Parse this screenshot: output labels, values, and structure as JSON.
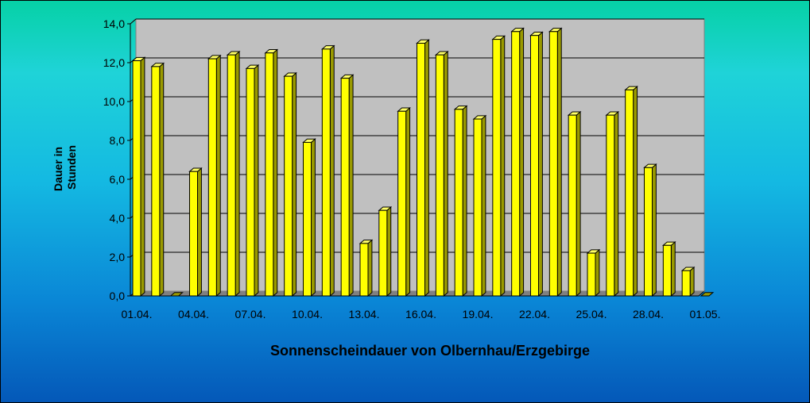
{
  "chart_data": {
    "type": "bar",
    "title": "Sonnenscheindauer von Olbernhau/Erzgebirge",
    "ylabel_lines": [
      "Dauer in",
      "Stunden"
    ],
    "xlabel": "",
    "ylim": [
      0,
      14
    ],
    "yticks": [
      "0,0",
      "2,0",
      "4,0",
      "6,0",
      "8,0",
      "10,0",
      "12,0",
      "14,0"
    ],
    "xtick_labels": [
      "01.04.",
      "04.04.",
      "07.04.",
      "10.04.",
      "13.04.",
      "16.04.",
      "19.04.",
      "22.04.",
      "25.04.",
      "28.04.",
      "01.05."
    ],
    "categories": [
      "01.04.",
      "02.04.",
      "03.04.",
      "04.04.",
      "05.04.",
      "06.04.",
      "07.04.",
      "08.04.",
      "09.04.",
      "10.04.",
      "11.04.",
      "12.04.",
      "13.04.",
      "14.04.",
      "15.04.",
      "16.04.",
      "17.04.",
      "18.04.",
      "19.04.",
      "20.04.",
      "21.04.",
      "22.04.",
      "23.04.",
      "24.04.",
      "25.04.",
      "26.04.",
      "27.04.",
      "28.04.",
      "29.04.",
      "30.04.",
      "01.05."
    ],
    "values": [
      12.1,
      11.8,
      0,
      6.4,
      12.2,
      12.4,
      11.7,
      12.5,
      11.3,
      7.9,
      12.7,
      11.2,
      2.7,
      4.4,
      9.5,
      13.0,
      12.4,
      9.6,
      9.1,
      13.2,
      13.6,
      13.4,
      13.6,
      9.3,
      2.2,
      9.3,
      10.6,
      6.6,
      2.6,
      1.3,
      0
    ],
    "grid": true,
    "colors": {
      "bar_front": "#ffff00",
      "bar_side": "#9a9a00",
      "bar_top": "#ffff66",
      "plot_wall": "#c0c0c0",
      "plot_floor": "#808080",
      "gridline": "#000000"
    }
  }
}
